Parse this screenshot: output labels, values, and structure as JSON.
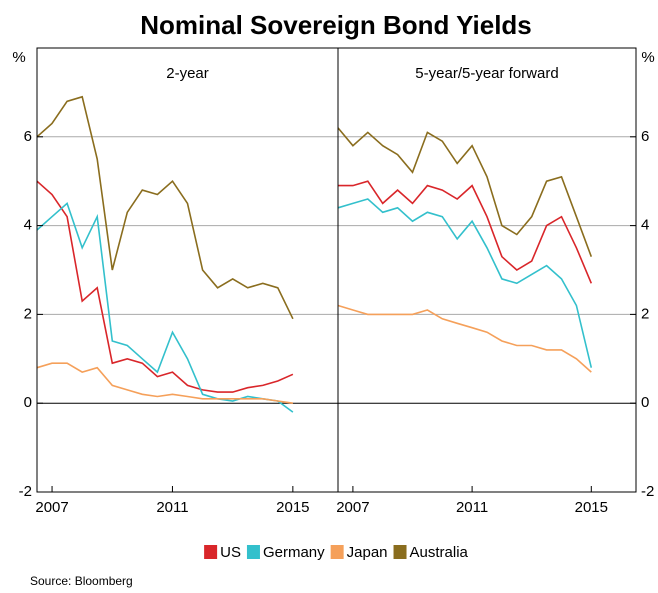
{
  "title": "Nominal Sovereign Bond Yields",
  "source": "Source:  Bloomberg",
  "chart_data": [
    {
      "type": "line",
      "title": "2-year",
      "ylabel": "%",
      "x": [
        2006.5,
        2007,
        2007.5,
        2008,
        2008.5,
        2009,
        2009.5,
        2010,
        2010.5,
        2011,
        2011.5,
        2012,
        2012.5,
        2013,
        2013.5,
        2014,
        2014.5,
        2015
      ],
      "series": [
        {
          "name": "US",
          "color": "#d9262a",
          "values": [
            5.0,
            4.7,
            4.2,
            2.3,
            2.6,
            0.9,
            1.0,
            0.9,
            0.6,
            0.7,
            0.4,
            0.3,
            0.25,
            0.25,
            0.35,
            0.4,
            0.5,
            0.65
          ]
        },
        {
          "name": "Germany",
          "color": "#33c0cc",
          "values": [
            3.9,
            4.2,
            4.5,
            3.5,
            4.2,
            1.4,
            1.3,
            1.0,
            0.7,
            1.6,
            1.0,
            0.2,
            0.1,
            0.05,
            0.15,
            0.1,
            0.05,
            -0.2
          ]
        },
        {
          "name": "Japan",
          "color": "#f5a05a",
          "values": [
            0.8,
            0.9,
            0.9,
            0.7,
            0.8,
            0.4,
            0.3,
            0.2,
            0.15,
            0.2,
            0.15,
            0.1,
            0.1,
            0.1,
            0.1,
            0.1,
            0.05,
            0.0
          ]
        },
        {
          "name": "Australia",
          "color": "#8a6d1e",
          "values": [
            6.0,
            6.3,
            6.8,
            6.9,
            5.5,
            3.0,
            4.3,
            4.8,
            4.7,
            5.0,
            4.5,
            3.0,
            2.6,
            2.8,
            2.6,
            2.7,
            2.6,
            1.9
          ]
        }
      ],
      "xlim": [
        2006.5,
        2016.5
      ],
      "xticks": [
        2007,
        2011,
        2015
      ],
      "ylim": [
        -2,
        8
      ],
      "yticks": [
        -2,
        0,
        2,
        4,
        6
      ],
      "grid": true
    },
    {
      "type": "line",
      "title": "5-year/5-year forward",
      "ylabel": "%",
      "x": [
        2006.5,
        2007,
        2007.5,
        2008,
        2008.5,
        2009,
        2009.5,
        2010,
        2010.5,
        2011,
        2011.5,
        2012,
        2012.5,
        2013,
        2013.5,
        2014,
        2014.5,
        2015
      ],
      "series": [
        {
          "name": "US",
          "color": "#d9262a",
          "values": [
            4.9,
            4.9,
            5.0,
            4.5,
            4.8,
            4.5,
            4.9,
            4.8,
            4.6,
            4.9,
            4.2,
            3.3,
            3.0,
            3.2,
            4.0,
            4.2,
            3.5,
            2.7
          ]
        },
        {
          "name": "Germany",
          "color": "#33c0cc",
          "values": [
            4.4,
            4.5,
            4.6,
            4.3,
            4.4,
            4.1,
            4.3,
            4.2,
            3.7,
            4.1,
            3.5,
            2.8,
            2.7,
            2.9,
            3.1,
            2.8,
            2.2,
            0.8
          ]
        },
        {
          "name": "Japan",
          "color": "#f5a05a",
          "values": [
            2.2,
            2.1,
            2.0,
            2.0,
            2.0,
            2.0,
            2.1,
            1.9,
            1.8,
            1.7,
            1.6,
            1.4,
            1.3,
            1.3,
            1.2,
            1.2,
            1.0,
            0.7
          ]
        },
        {
          "name": "Australia",
          "color": "#8a6d1e",
          "values": [
            6.2,
            5.8,
            6.1,
            5.8,
            5.6,
            5.2,
            6.1,
            5.9,
            5.4,
            5.8,
            5.1,
            4.0,
            3.8,
            4.2,
            5.0,
            5.1,
            4.2,
            3.3
          ]
        }
      ],
      "xlim": [
        2006.5,
        2016.5
      ],
      "xticks": [
        2007,
        2011,
        2015
      ],
      "ylim": [
        -2,
        8
      ],
      "yticks": [
        -2,
        0,
        2,
        4,
        6
      ],
      "grid": true
    }
  ]
}
